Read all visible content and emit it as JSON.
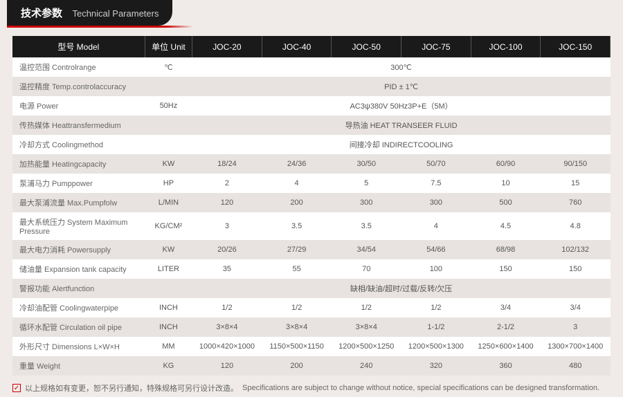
{
  "header": {
    "cn": "技术参数",
    "en": "Technical Parameters"
  },
  "columns": {
    "model": "型号 Model",
    "unit": "单位 Unit",
    "c1": "JOC-20",
    "c2": "JOC-40",
    "c3": "JOC-50",
    "c4": "JOC-75",
    "c5": "JOC-100",
    "c6": "JOC-150"
  },
  "rows": [
    {
      "label": "温控范围 Controlrange",
      "unit": "℃",
      "span": "300℃"
    },
    {
      "label": "温控精度 Temp.controlaccuracy",
      "unit": "",
      "span": "PID ± 1℃"
    },
    {
      "label": "电源 Power",
      "unit": "50Hz",
      "span": "AC3ψ380V 50Hz3P+E（5M）"
    },
    {
      "label": "传热媒体 Heattransfermedium",
      "unit": "",
      "span": "导热油 HEAT TRANSEER FLUID"
    },
    {
      "label": "冷却方式 Coolingmethod",
      "unit": "",
      "span": "间接冷却 INDIRECTCOOLING"
    },
    {
      "label": "加热能量 Heatingcapacity",
      "unit": "KW",
      "v": [
        "18/24",
        "24/36",
        "30/50",
        "50/70",
        "60/90",
        "90/150"
      ]
    },
    {
      "label": "泵浦马力 Pumppower",
      "unit": "HP",
      "v": [
        "2",
        "4",
        "5",
        "7.5",
        "10",
        "15"
      ]
    },
    {
      "label": "最大泵浦流量 Max.Pumpfolw",
      "unit": "L/MIN",
      "v": [
        "120",
        "200",
        "300",
        "300",
        "500",
        "760"
      ]
    },
    {
      "label": "最大系统压力 System Maximum Pressure",
      "unit": "KG/CM²",
      "v": [
        "3",
        "3.5",
        "3.5",
        "4",
        "4.5",
        "4.8"
      ]
    },
    {
      "label": "最大电力消耗 Powersupply",
      "unit": "KW",
      "v": [
        "20/26",
        "27/29",
        "34/54",
        "54/66",
        "68/98",
        "102/132"
      ]
    },
    {
      "label": "储油量 Expansion tank capacity",
      "unit": "LITER",
      "v": [
        "35",
        "55",
        "70",
        "100",
        "150",
        "150"
      ]
    },
    {
      "label": "警报功能 Alertfunction",
      "unit": "",
      "span": "缺相/缺油/超时/过载/反转/欠压"
    },
    {
      "label": "冷却油配管 Coolingwaterpipe",
      "unit": "INCH",
      "v": [
        "1/2",
        "1/2",
        "1/2",
        "1/2",
        "3/4",
        "3/4"
      ]
    },
    {
      "label": "循环水配管 Circulation oil pipe",
      "unit": "INCH",
      "v": [
        "3×8×4",
        "3×8×4",
        "3×8×4",
        "1-1/2",
        "2-1/2",
        "3"
      ]
    },
    {
      "label": "外形尺寸 Dimensions L×W×H",
      "unit": "MM",
      "v": [
        "1000×420×1000",
        "1150×500×1150",
        "1200×500×1250",
        "1200×500×1300",
        "1250×600×1400",
        "1300×700×1400"
      ]
    },
    {
      "label": "重量 Weight",
      "unit": "KG",
      "v": [
        "120",
        "200",
        "240",
        "320",
        "360",
        "480"
      ]
    }
  ],
  "footer": {
    "cn": "以上规格如有变更，恕不另行通知，特殊规格可另行设计改造。",
    "en": "Specifications are subject to change without notice, special specifications can be designed transformation."
  },
  "colors": {
    "headerBg": "#1a1a1a",
    "accent": "#c00",
    "rowOdd": "#fff",
    "rowEven": "#e8e3e0"
  }
}
